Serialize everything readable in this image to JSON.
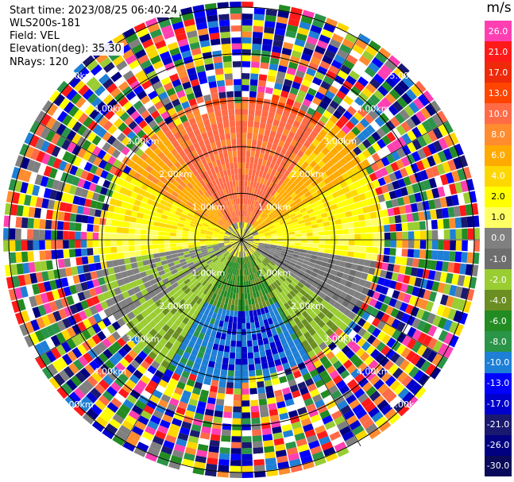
{
  "header": {
    "start_time_label": "Start time:",
    "start_time": "2023/08/25 06:40:24",
    "site": "WLS200s-181",
    "field_label": "Field:",
    "field": "VEL",
    "elevation_label": "Elevation(deg):",
    "elevation": "35.30",
    "nrays_label": "NRays:",
    "nrays": "120"
  },
  "colorbar": {
    "unit": "m/s",
    "ticks": [
      "26.0",
      "21.0",
      "17.0",
      "13.0",
      "10.0",
      "8.0",
      "6.0",
      "4.0",
      "2.0",
      "1.0",
      "0.0",
      "-1.0",
      "-2.0",
      "-4.0",
      "-6.0",
      "-8.0",
      "-10.0",
      "-13.0",
      "-17.0",
      "-21.0",
      "-26.0",
      "-30.0"
    ],
    "colors": [
      "#ff3fb2",
      "#ff1a1a",
      "#ee2a0a",
      "#ff4500",
      "#ff6b47",
      "#ff8c2f",
      "#ffaa00",
      "#ffd700",
      "#ffff00",
      "#ffff66",
      "#808080",
      "#6e6e6e",
      "#9acd32",
      "#6b8e23",
      "#228b22",
      "#2a9448",
      "#1e7fd6",
      "#0000ff",
      "#0000cd",
      "#191970",
      "#000080",
      "#0a0a5a"
    ]
  },
  "ring_labels": [
    "1.00km",
    "2.00km",
    "3.00km",
    "4.00km",
    "5.00km"
  ]
}
